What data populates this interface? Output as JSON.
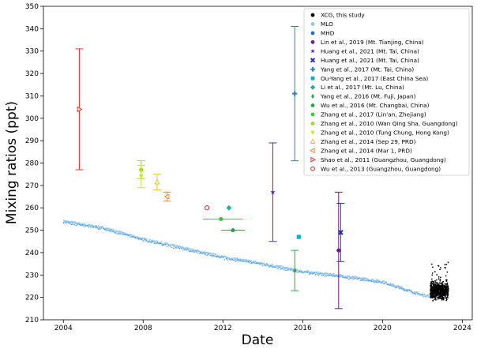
{
  "chart_data": {
    "type": "scatter",
    "xlabel": "Date",
    "ylabel": "Mixing ratios (ppt)",
    "xlim": [
      2003.0,
      2024.5
    ],
    "ylim": [
      210,
      350
    ],
    "x_ticks": [
      2004,
      2008,
      2012,
      2016,
      2020,
      2024
    ],
    "y_ticks": [
      210,
      220,
      230,
      240,
      250,
      260,
      270,
      280,
      290,
      300,
      310,
      320,
      330,
      340,
      350
    ],
    "grid": false,
    "legend_position": "top-right",
    "series": [
      {
        "name": "XCG, this study",
        "color": "#000000",
        "marker": "circle",
        "cluster": {
          "x_start": 2022.4,
          "x_end": 2023.3,
          "y_min": 218,
          "y_max": 236,
          "center": 223
        }
      },
      {
        "name": "MLO",
        "color": "#8ec7ef",
        "marker": "circle",
        "trend": [
          [
            2004.0,
            254.0
          ],
          [
            2006.0,
            251.0
          ],
          [
            2008.0,
            246.0
          ],
          [
            2010.0,
            242.0
          ],
          [
            2012.0,
            238.0
          ],
          [
            2014.0,
            235.0
          ],
          [
            2016.0,
            231.5
          ],
          [
            2018.0,
            229.5
          ],
          [
            2020.0,
            227.0
          ],
          [
            2022.0,
            221.0
          ],
          [
            2023.0,
            220.0
          ]
        ]
      },
      {
        "name": "MHD",
        "color": "#1f6fd1",
        "marker": "circle",
        "trend": [
          [
            2004.0,
            253.5
          ],
          [
            2006.0,
            250.5
          ],
          [
            2008.0,
            245.5
          ],
          [
            2010.0,
            241.5
          ],
          [
            2012.0,
            237.5
          ],
          [
            2014.0,
            234.5
          ],
          [
            2016.0,
            231.0
          ],
          [
            2018.0,
            229.0
          ],
          [
            2020.0,
            226.5
          ],
          [
            2022.0,
            221.0
          ]
        ]
      },
      {
        "name": "Lin et al., 2019 (Mt. Tianjing, China)",
        "color": "#6a1b8a",
        "marker": "circle",
        "x": 2017.8,
        "y": 241,
        "y_err": [
          215,
          267
        ]
      },
      {
        "name": "Huang et al., 2021 (Mt. Tai, China)",
        "color": "#5a2d9c",
        "marker": "star",
        "x": 2014.5,
        "y": 267,
        "y_err": [
          245,
          289
        ]
      },
      {
        "name": "Huang et al., 2021 (Mt. Tai, China)",
        "color": "#1f2fb8",
        "marker": "x",
        "x": 2017.9,
        "y": 249,
        "y_err": [
          236,
          262
        ]
      },
      {
        "name": "Yang et al., 2017 (Mt. Tai, China)",
        "color": "#2a7fd4",
        "marker": "plus",
        "x": 2015.6,
        "y": 311,
        "y_err": [
          281,
          341
        ]
      },
      {
        "name": "Ou-Yang et al., 2017 (East China Sea)",
        "color": "#1aa7d6",
        "marker": "square",
        "x": 2015.8,
        "y": 247
      },
      {
        "name": "Li et al., 2017 (Mt. Lu, China)",
        "color": "#1bb09a",
        "marker": "diamond",
        "x": 2012.3,
        "y": 260
      },
      {
        "name": "Yang et al., 2016 (Mt. Fuji, Japan)",
        "color": "#2fa84f",
        "marker": "diamond-thin",
        "x": 2015.6,
        "y": 232,
        "y_err": [
          223,
          241
        ]
      },
      {
        "name": "Wu et al., 2016 (Mt. Changbai, China)",
        "color": "#1aa834",
        "marker": "pentagon",
        "x": 2012.5,
        "y": 250,
        "x_err": [
          2011.9,
          2013.1
        ]
      },
      {
        "name": "Zhang et al., 2017 (Lin'an, Zhejiang)",
        "color": "#33cc33",
        "marker": "circle",
        "x": 2011.9,
        "y": 255,
        "x_err": [
          2011.0,
          2013.0
        ]
      },
      {
        "name": "Zhang et al., 2010 (Wan Qing Sha, Guangdong)",
        "color": "#99dd33",
        "marker": "circle",
        "x": 2007.9,
        "y": 277,
        "y_err": [
          273,
          281
        ]
      },
      {
        "name": "Zhang et al., 2010 (Tung Chung, Hong Kong)",
        "color": "#dddd22",
        "marker": "triangle-down",
        "x": 2007.9,
        "y": 274,
        "y_err": [
          269,
          279
        ]
      },
      {
        "name": "Zhang et al., 2014 (Sep 29, PRD)",
        "color": "#f0c030",
        "marker": "triangle-up",
        "x": 2008.7,
        "y": 271.5,
        "y_err": [
          268,
          275
        ]
      },
      {
        "name": "Zhang et al., 2014 (Mar 1, PRD)",
        "color": "#f08a3c",
        "marker": "triangle-left",
        "x": 2009.2,
        "y": 265,
        "y_err": [
          263,
          267
        ]
      },
      {
        "name": "Shao et al., 2011 (Guangzhou, Guangdong)",
        "color": "#ee3333",
        "marker": "triangle-right",
        "x": 2004.8,
        "y": 304,
        "y_err": [
          277,
          331
        ]
      },
      {
        "name": "Wu et al., 2013 (Guangzhou, Guangdong)",
        "color": "#cc2222",
        "marker": "circle-open",
        "x": 2011.2,
        "y": 260
      }
    ]
  }
}
